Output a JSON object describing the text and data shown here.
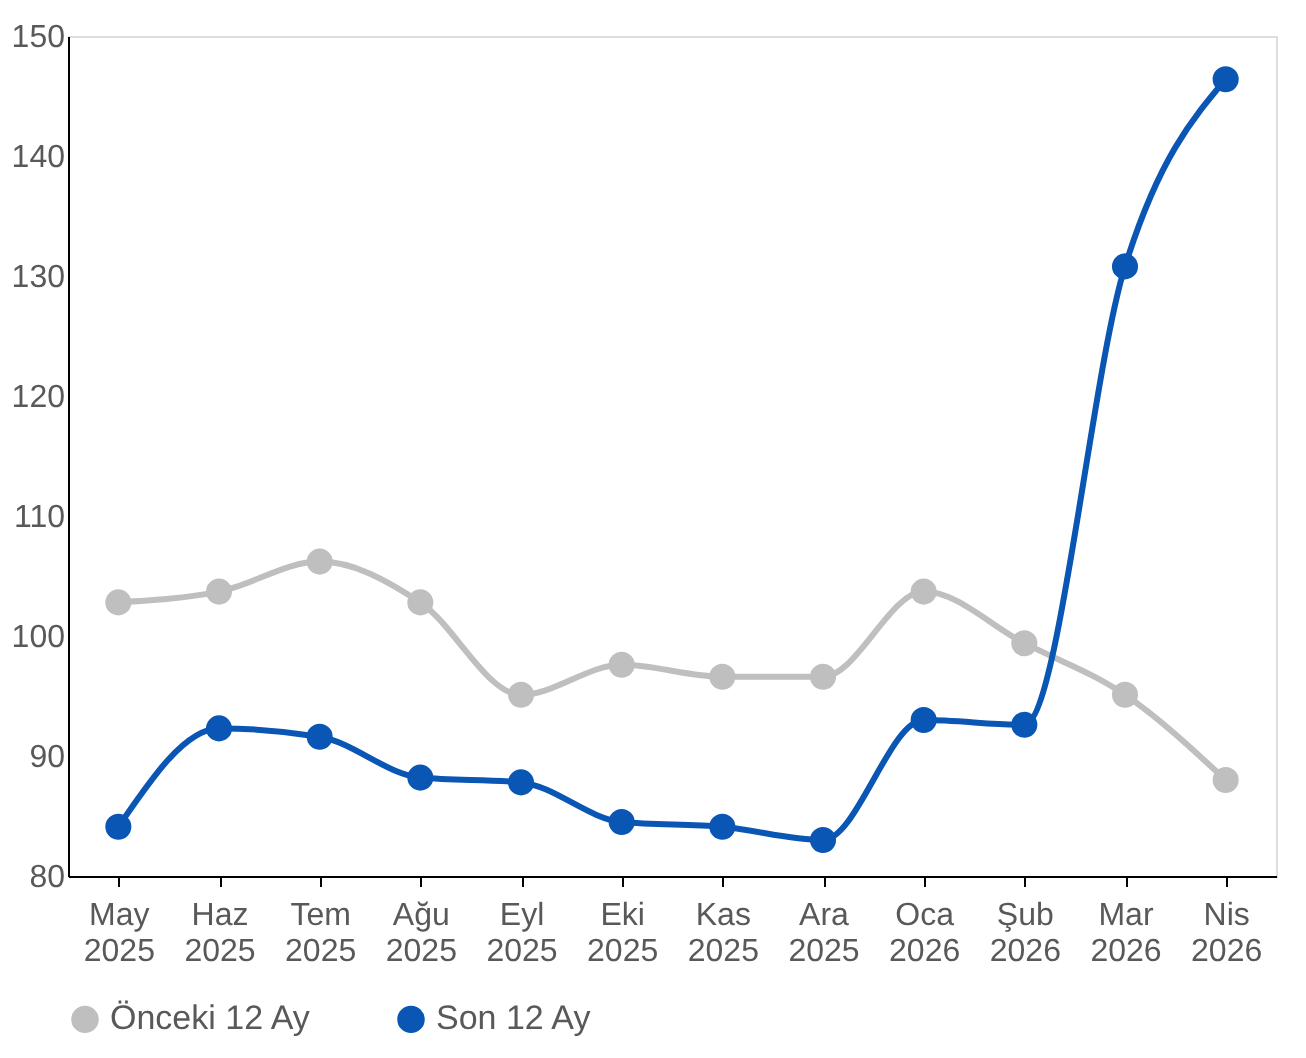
{
  "chart_data": {
    "type": "line",
    "categories": [
      "May 2025",
      "Haz 2025",
      "Tem 2025",
      "Ağu 2025",
      "Eyl 2025",
      "Eki 2025",
      "Kas 2025",
      "Ara 2025",
      "Oca 2026",
      "Şub 2026",
      "Mar 2026",
      "Nis 2026"
    ],
    "series": [
      {
        "name": "Önceki 12 Ay",
        "color": "#bfbfbf",
        "values": [
          102.8,
          103.7,
          106.2,
          102.8,
          95.1,
          97.6,
          96.6,
          96.6,
          103.7,
          99.4,
          95.1,
          88.0
        ]
      },
      {
        "name": "Son 12 Ay",
        "color": "#0a56b4",
        "values": [
          84.1,
          92.3,
          91.6,
          88.2,
          87.8,
          84.5,
          84.1,
          83.0,
          93.0,
          92.6,
          130.8,
          146.4
        ]
      }
    ],
    "ylim": [
      80,
      150
    ],
    "yticks": [
      80,
      90,
      100,
      110,
      120,
      130,
      140,
      150
    ],
    "grid": false,
    "legend": "bottom",
    "marker": "circle",
    "line_style": "solid"
  }
}
